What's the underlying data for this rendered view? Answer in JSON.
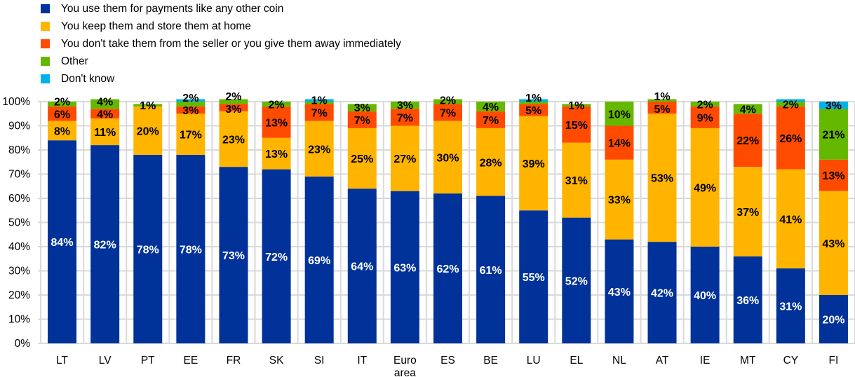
{
  "chart_data": {
    "type": "bar",
    "stacked": true,
    "categories": [
      "LT",
      "LV",
      "PT",
      "EE",
      "FR",
      "SK",
      "SI",
      "IT",
      "Euro area",
      "ES",
      "BE",
      "LU",
      "EL",
      "NL",
      "AT",
      "IE",
      "MT",
      "CY",
      "FI"
    ],
    "ylim": [
      0,
      100
    ],
    "yticks": [
      "0%",
      "10%",
      "20%",
      "30%",
      "40%",
      "50%",
      "60%",
      "70%",
      "80%",
      "90%",
      "100%"
    ],
    "grid": true,
    "legend_position": "top-left",
    "series": [
      {
        "name": "You use them for payments like any other coin",
        "color": "#003299",
        "label_color": "#FFFFFF",
        "values": [
          84,
          82,
          78,
          78,
          73,
          72,
          69,
          64,
          63,
          62,
          61,
          55,
          52,
          43,
          42,
          40,
          36,
          31,
          20
        ],
        "labels": [
          "84%",
          "82%",
          "78%",
          "78%",
          "73%",
          "72%",
          "69%",
          "64%",
          "63%",
          "62%",
          "61%",
          "55%",
          "52%",
          "43%",
          "42%",
          "40%",
          "36%",
          "31%",
          "20%"
        ]
      },
      {
        "name": "You keep them and store them at home",
        "color": "#FFB400",
        "label_color": "#000000",
        "values": [
          8,
          11,
          20,
          17,
          23,
          13,
          23,
          25,
          27,
          30,
          28,
          39,
          31,
          33,
          53,
          49,
          37,
          41,
          43
        ],
        "labels": [
          "8%",
          "11%",
          "20%",
          "17%",
          "23%",
          "13%",
          "23%",
          "25%",
          "27%",
          "30%",
          "28%",
          "39%",
          "31%",
          "33%",
          "53%",
          "49%",
          "37%",
          "41%",
          "43%"
        ]
      },
      {
        "name": "You don't take them from the seller or you give them away immediately",
        "color": "#FF4B00",
        "label_color": "#000000",
        "values": [
          6,
          4,
          0,
          3,
          3,
          13,
          7,
          7,
          7,
          7,
          7,
          5,
          15,
          14,
          5,
          9,
          22,
          26,
          13
        ],
        "labels": [
          "6%",
          "4%",
          null,
          "3%",
          "3%",
          "13%",
          "7%",
          "7%",
          "7%",
          "7%",
          "7%",
          "5%",
          "15%",
          "14%",
          "5%",
          "9%",
          "22%",
          "26%",
          "13%"
        ]
      },
      {
        "name": "Other",
        "color": "#65B800",
        "label_color": "#000000",
        "values": [
          2,
          4,
          1,
          2,
          2,
          2,
          1,
          3,
          3,
          2,
          4,
          1,
          1,
          10,
          1,
          2,
          4,
          2,
          21
        ],
        "labels": [
          "2%",
          "4%",
          "1%",
          "2%",
          "2%",
          "2%",
          "1%",
          "3%",
          "3%",
          "2%",
          "4%",
          "1%",
          "1%",
          "10%",
          "1%",
          "2%",
          "4%",
          "2%",
          "21%"
        ]
      },
      {
        "name": "Don't know",
        "color": "#00B1EA",
        "label_color": "#000000",
        "values": [
          0,
          0,
          0,
          1,
          0,
          0,
          1,
          0,
          0,
          0,
          0,
          1,
          0,
          0,
          0,
          0,
          0,
          1,
          3
        ],
        "labels": [
          null,
          null,
          null,
          null,
          null,
          null,
          null,
          null,
          null,
          null,
          null,
          null,
          null,
          null,
          null,
          null,
          null,
          null,
          "3%"
        ]
      }
    ]
  }
}
